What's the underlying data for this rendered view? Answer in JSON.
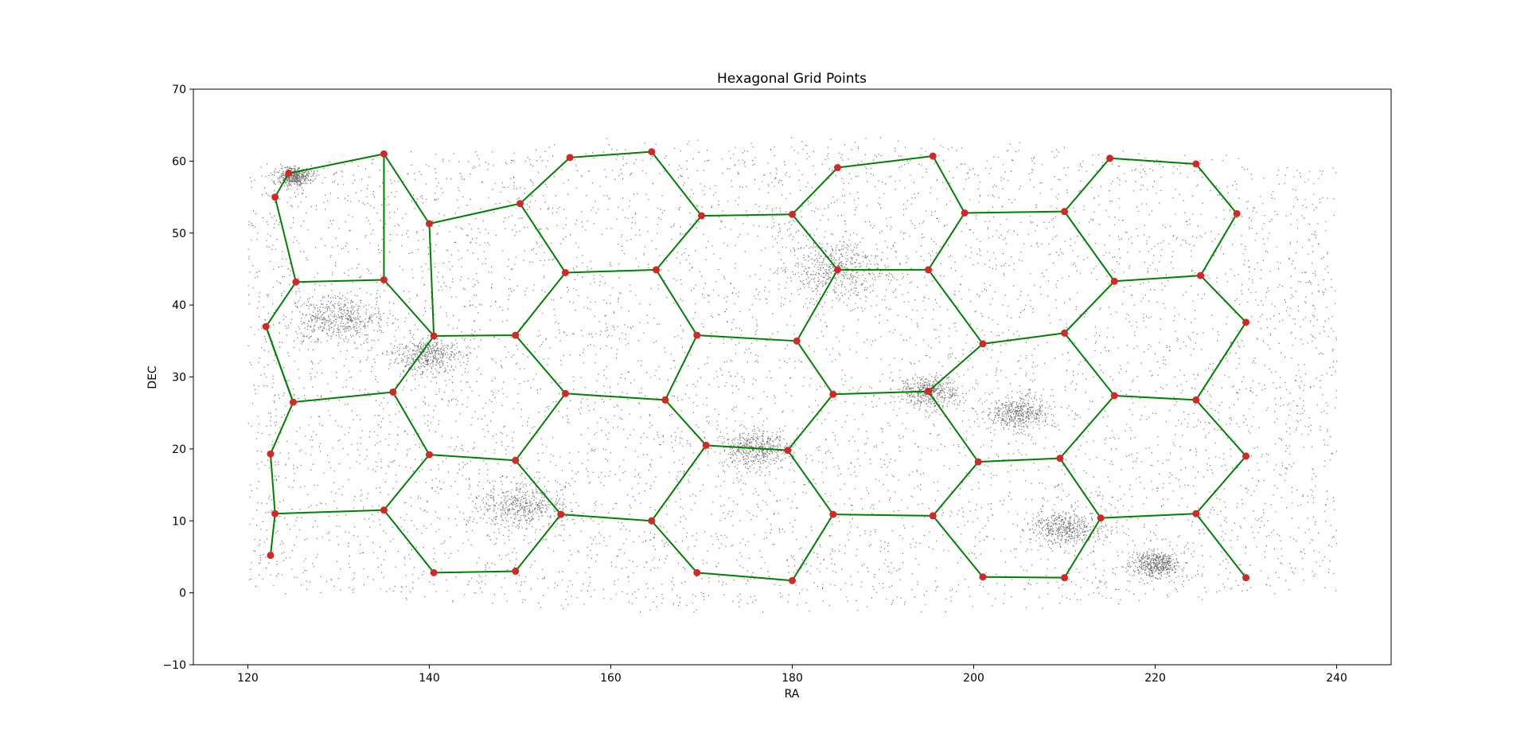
{
  "chart_data": {
    "type": "scatter",
    "title": "Hexagonal Grid Points",
    "xlabel": "RA",
    "ylabel": "DEC",
    "xlim": [
      114,
      246
    ],
    "ylim": [
      -10,
      70
    ],
    "xticks": [
      120,
      140,
      160,
      180,
      200,
      220,
      240
    ],
    "yticks": [
      -10,
      0,
      10,
      20,
      30,
      40,
      50,
      60,
      70
    ],
    "grid": false,
    "colors": {
      "points": "#d62728",
      "edges": "#008000",
      "background_sources": "#000000"
    },
    "background_sources": {
      "description_visible": "dense scatter of small black points",
      "ra_range": [
        120,
        240
      ],
      "dec_range": [
        -3,
        68
      ]
    },
    "grid_points": [
      [
        122.5,
        5.2
      ],
      [
        123.0,
        11.0
      ],
      [
        122.5,
        19.3
      ],
      [
        125.0,
        26.5
      ],
      [
        122.0,
        37.0
      ],
      [
        125.3,
        43.2
      ],
      [
        123.0,
        55.0
      ],
      [
        124.5,
        58.3
      ],
      [
        135.0,
        61.0
      ],
      [
        140.0,
        51.3
      ],
      [
        135.0,
        43.5
      ],
      [
        140.5,
        35.7
      ],
      [
        136.0,
        27.9
      ],
      [
        140.0,
        19.2
      ],
      [
        135.0,
        11.5
      ],
      [
        140.5,
        2.8
      ],
      [
        149.5,
        3.0
      ],
      [
        154.5,
        10.9
      ],
      [
        149.5,
        18.4
      ],
      [
        155.0,
        27.7
      ],
      [
        149.5,
        35.8
      ],
      [
        155.0,
        44.5
      ],
      [
        150.0,
        54.1
      ],
      [
        155.5,
        60.5
      ],
      [
        164.5,
        61.3
      ],
      [
        170.0,
        52.4
      ],
      [
        165.0,
        44.9
      ],
      [
        169.5,
        35.8
      ],
      [
        166.0,
        26.8
      ],
      [
        170.5,
        20.5
      ],
      [
        164.5,
        10.0
      ],
      [
        169.5,
        2.8
      ],
      [
        180.0,
        1.7
      ],
      [
        184.5,
        10.9
      ],
      [
        179.5,
        19.8
      ],
      [
        184.5,
        27.6
      ],
      [
        180.5,
        35.0
      ],
      [
        185.0,
        44.9
      ],
      [
        180.0,
        52.6
      ],
      [
        185.0,
        59.1
      ],
      [
        195.5,
        60.7
      ],
      [
        199.0,
        52.8
      ],
      [
        195.0,
        44.9
      ],
      [
        201.0,
        34.6
      ],
      [
        195.0,
        28.0
      ],
      [
        195.5,
        10.7
      ],
      [
        200.5,
        18.2
      ],
      [
        201.0,
        2.2
      ],
      [
        210.0,
        2.1
      ],
      [
        214.0,
        10.4
      ],
      [
        209.5,
        18.7
      ],
      [
        215.5,
        27.4
      ],
      [
        210.0,
        36.1
      ],
      [
        215.5,
        43.3
      ],
      [
        210.0,
        53.0
      ],
      [
        215.0,
        60.4
      ],
      [
        224.5,
        59.6
      ],
      [
        229.0,
        52.7
      ],
      [
        225.0,
        44.1
      ],
      [
        230.0,
        37.6
      ],
      [
        224.5,
        26.8
      ],
      [
        230.0,
        19.0
      ],
      [
        224.5,
        11.0
      ],
      [
        230.0,
        2.1
      ]
    ],
    "edges": [
      [
        0,
        1
      ],
      [
        1,
        2
      ],
      [
        2,
        3
      ],
      [
        3,
        4
      ],
      [
        4,
        5
      ],
      [
        5,
        6
      ],
      [
        6,
        7
      ],
      [
        7,
        8
      ],
      [
        8,
        9
      ],
      [
        9,
        11
      ],
      [
        5,
        10
      ],
      [
        10,
        8
      ],
      [
        10,
        11
      ],
      [
        4,
        3
      ],
      [
        11,
        12
      ],
      [
        12,
        3
      ],
      [
        12,
        13
      ],
      [
        13,
        14
      ],
      [
        14,
        1
      ],
      [
        13,
        18
      ],
      [
        14,
        15
      ],
      [
        15,
        16
      ],
      [
        16,
        17
      ],
      [
        17,
        18
      ],
      [
        18,
        19
      ],
      [
        19,
        20
      ],
      [
        20,
        11
      ],
      [
        20,
        21
      ],
      [
        21,
        22
      ],
      [
        22,
        9
      ],
      [
        22,
        23
      ],
      [
        23,
        24
      ],
      [
        24,
        25
      ],
      [
        21,
        26
      ],
      [
        26,
        25
      ],
      [
        26,
        27
      ],
      [
        27,
        28
      ],
      [
        28,
        19
      ],
      [
        28,
        29
      ],
      [
        29,
        30
      ],
      [
        30,
        17
      ],
      [
        30,
        31
      ],
      [
        31,
        32
      ],
      [
        32,
        33
      ],
      [
        33,
        34
      ],
      [
        34,
        29
      ],
      [
        34,
        35
      ],
      [
        35,
        36
      ],
      [
        36,
        27
      ],
      [
        36,
        37
      ],
      [
        37,
        38
      ],
      [
        38,
        25
      ],
      [
        38,
        39
      ],
      [
        39,
        40
      ],
      [
        40,
        41
      ],
      [
        41,
        42
      ],
      [
        42,
        37
      ],
      [
        42,
        43
      ],
      [
        35,
        44
      ],
      [
        44,
        43
      ],
      [
        44,
        46
      ],
      [
        46,
        45
      ],
      [
        45,
        33
      ],
      [
        45,
        47
      ],
      [
        47,
        48
      ],
      [
        48,
        49
      ],
      [
        49,
        50
      ],
      [
        50,
        46
      ],
      [
        50,
        51
      ],
      [
        51,
        52
      ],
      [
        52,
        43
      ],
      [
        52,
        53
      ],
      [
        53,
        54
      ],
      [
        54,
        41
      ],
      [
        53,
        58
      ],
      [
        58,
        57
      ],
      [
        57,
        56
      ],
      [
        56,
        55
      ],
      [
        55,
        54
      ],
      [
        58,
        59
      ],
      [
        59,
        60
      ],
      [
        60,
        51
      ],
      [
        60,
        61
      ],
      [
        61,
        62
      ],
      [
        62,
        49
      ],
      [
        62,
        63
      ]
    ]
  }
}
